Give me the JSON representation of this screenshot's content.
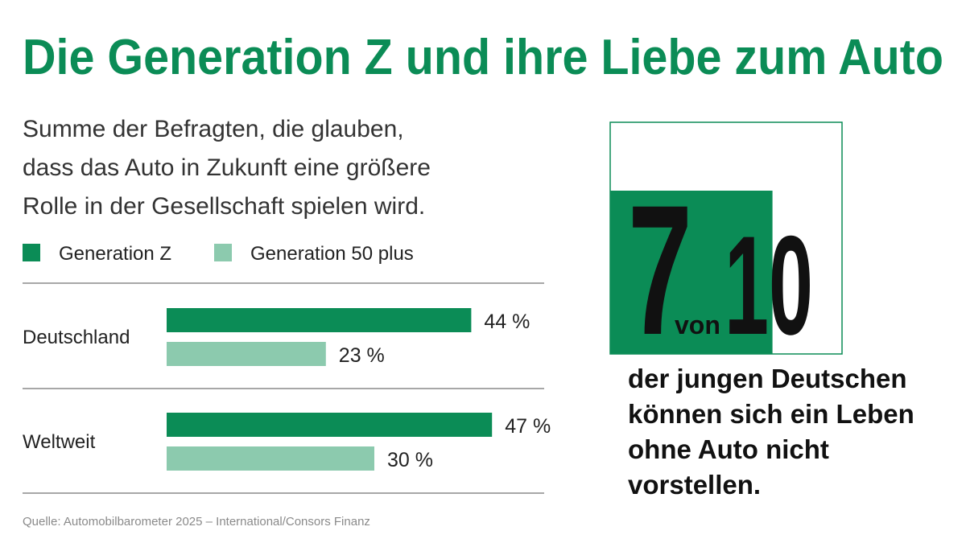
{
  "chart_data": {
    "type": "bar",
    "orientation": "horizontal",
    "title": "Die Generation Z und ihre Liebe zum Auto",
    "subtitle": [
      "Summe der Befragten, die glauben,",
      "dass das Auto in Zukunft eine größere",
      "Rolle in der Gesellschaft spielen wird."
    ],
    "categories": [
      "Deutschland",
      "Weltweit"
    ],
    "series": [
      {
        "name": "Generation Z",
        "color": "#0b8c56",
        "values": [
          44,
          47
        ],
        "value_labels": [
          "44 %",
          "47 %"
        ]
      },
      {
        "name": "Generation 50 plus",
        "color": "#8ccaae",
        "values": [
          23,
          30
        ],
        "value_labels": [
          "23 %",
          "30 %"
        ]
      }
    ],
    "legend": "top-left",
    "source": "Quelle: Automobilbarometer 2025 – International/Consors Finanz"
  },
  "callout": {
    "numerator": 7,
    "connector": "von",
    "denominator": 10,
    "color": "#0b8c56",
    "text": [
      "der jungen Deutschen",
      "können sich ein Leben",
      "ohne Auto nicht",
      "vorstellen."
    ]
  }
}
